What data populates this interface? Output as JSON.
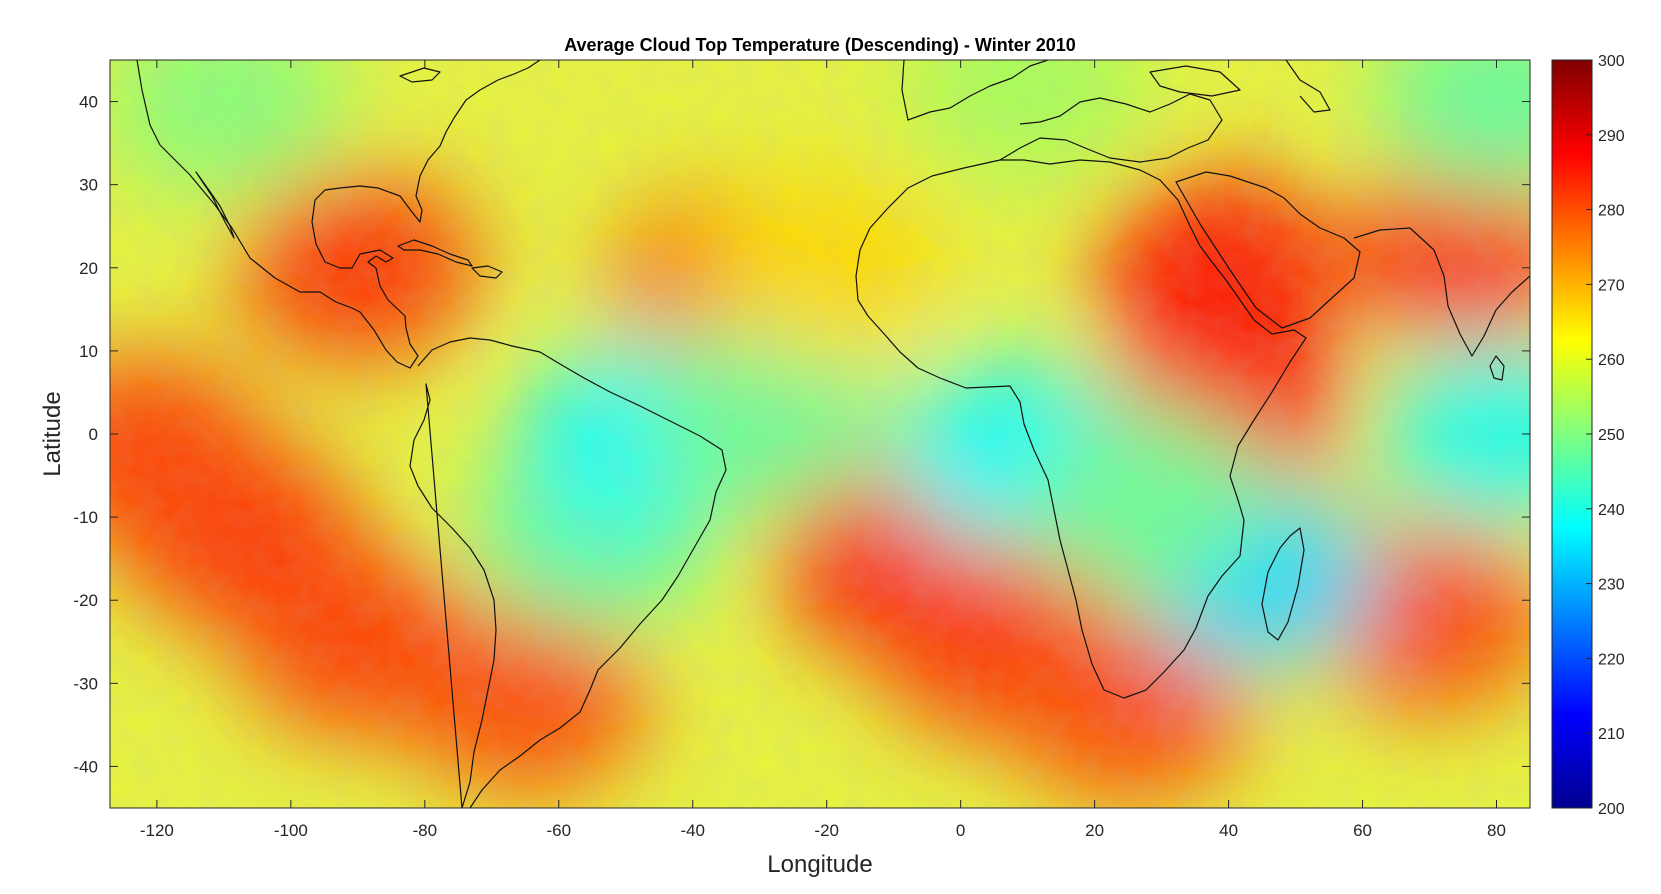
{
  "chart_data": {
    "type": "heatmap",
    "title": "Average Cloud Top Temperature (Descending) - Winter 2010",
    "xlabel": "Longitude",
    "ylabel": "Latitude",
    "xlim": [
      -127,
      85
    ],
    "ylim": [
      -45,
      45
    ],
    "x_ticks": [
      -120,
      -100,
      -80,
      -60,
      -40,
      -20,
      0,
      20,
      40,
      60,
      80
    ],
    "y_ticks": [
      40,
      30,
      20,
      10,
      0,
      -10,
      -20,
      -30,
      -40
    ],
    "colorbar": {
      "min": 200,
      "max": 300,
      "colormap": "jet",
      "ticks": [
        300,
        290,
        280,
        270,
        260,
        250,
        240,
        230,
        220,
        210,
        200
      ]
    },
    "regions": [
      {
        "lon": -108,
        "lat": -12,
        "value": 282
      },
      {
        "lon": -90,
        "lat": -25,
        "value": 281
      },
      {
        "lon": -122,
        "lat": -2,
        "value": 281
      },
      {
        "lon": -65,
        "lat": -32,
        "value": 280
      },
      {
        "lon": -90,
        "lat": 20,
        "value": 282
      },
      {
        "lon": -35,
        "lat": 18,
        "value": 276
      },
      {
        "lon": -10,
        "lat": -15,
        "value": 284
      },
      {
        "lon": 5,
        "lat": -25,
        "value": 282
      },
      {
        "lon": 40,
        "lat": 5,
        "value": 287
      },
      {
        "lon": 38,
        "lat": 20,
        "value": 285
      },
      {
        "lon": 75,
        "lat": 22,
        "value": 283
      },
      {
        "lon": 70,
        "lat": -22,
        "value": 280
      },
      {
        "lon": 25,
        "lat": -33,
        "value": 280
      },
      {
        "lon": -55,
        "lat": -12,
        "value": 247
      },
      {
        "lon": -48,
        "lat": 0,
        "value": 238
      },
      {
        "lon": 8,
        "lat": -2,
        "value": 238
      },
      {
        "lon": 44,
        "lat": -17,
        "value": 234
      },
      {
        "lon": 80,
        "lat": 0,
        "value": 240
      },
      {
        "lon": 28,
        "lat": -8,
        "value": 248
      },
      {
        "lon": -30,
        "lat": 2,
        "value": 248
      },
      {
        "lon": -110,
        "lat": 40,
        "value": 251
      },
      {
        "lon": 80,
        "lat": 40,
        "value": 248
      },
      {
        "lon": 10,
        "lat": 42,
        "value": 254
      },
      {
        "lon": -20,
        "lat": 20,
        "value": 266
      }
    ]
  }
}
